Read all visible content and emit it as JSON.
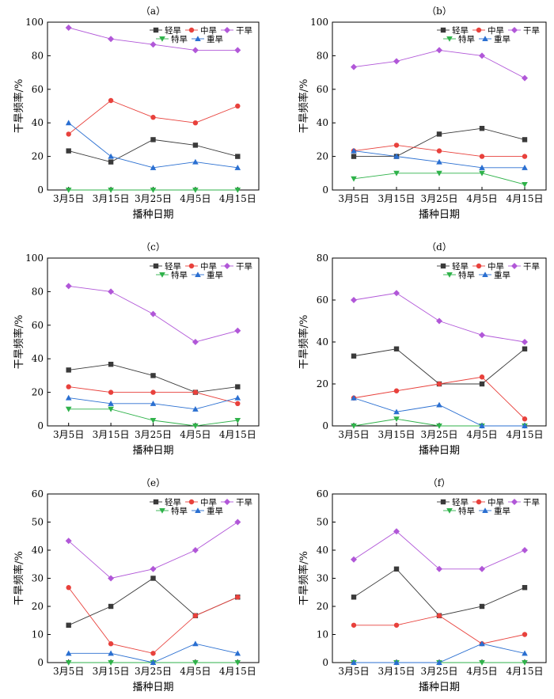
{
  "series_styles": [
    {
      "key": "qinghan",
      "color": "#3a3a3a",
      "marker": "square"
    },
    {
      "key": "zhonghan",
      "color": "#e8413c",
      "marker": "circle"
    },
    {
      "key": "ganhan",
      "color": "#b157d8",
      "marker": "diamond"
    },
    {
      "key": "tehan",
      "color": "#2fb24a",
      "marker": "triangle-down"
    },
    {
      "key": "zhonghan2",
      "color": "#2a6fd1",
      "marker": "triangle-up"
    }
  ],
  "chart_data": [
    {
      "type": "line",
      "title": "（a）",
      "categories": [
        "3月5日",
        "3月15日",
        "3月25日",
        "4月5日",
        "4月15日"
      ],
      "xlabel": "播种日期",
      "ylabel": "干旱频率/%",
      "ylim": [
        0,
        100
      ],
      "yticks": [
        0,
        20,
        40,
        60,
        80,
        100
      ],
      "legend_position": "top-right",
      "series": [
        {
          "name": "轻旱",
          "values": [
            23.3,
            16.7,
            30.0,
            26.7,
            20.0
          ]
        },
        {
          "name": "中旱",
          "values": [
            33.3,
            53.3,
            43.3,
            40.0,
            50.0
          ]
        },
        {
          "name": "干旱",
          "values": [
            96.7,
            90.0,
            86.7,
            83.3,
            83.3
          ]
        },
        {
          "name": "特旱",
          "values": [
            0,
            0,
            0,
            0,
            0
          ]
        },
        {
          "name": "重旱",
          "values": [
            40.0,
            20.0,
            13.3,
            16.7,
            13.3
          ]
        }
      ]
    },
    {
      "type": "line",
      "title": "（b）",
      "categories": [
        "3月5日",
        "3月15日",
        "3月25日",
        "4月5日",
        "4月15日"
      ],
      "xlabel": "播种日期",
      "ylabel": "干旱频率/%",
      "ylim": [
        0,
        100
      ],
      "yticks": [
        0,
        20,
        40,
        60,
        80,
        100
      ],
      "legend_position": "top-right",
      "series": [
        {
          "name": "轻旱",
          "values": [
            20.0,
            20.0,
            33.3,
            36.7,
            30.0
          ]
        },
        {
          "name": "中旱",
          "values": [
            23.3,
            26.7,
            23.3,
            20.0,
            20.0
          ]
        },
        {
          "name": "干旱",
          "values": [
            73.3,
            76.7,
            83.3,
            80.0,
            66.7
          ]
        },
        {
          "name": "特旱",
          "values": [
            6.7,
            10.0,
            10.0,
            10.0,
            3.3
          ]
        },
        {
          "name": "重旱",
          "values": [
            23.3,
            20.0,
            16.7,
            13.3,
            13.3
          ]
        }
      ]
    },
    {
      "type": "line",
      "title": "（c）",
      "categories": [
        "3月5日",
        "3月15日",
        "3月25日",
        "4月5日",
        "4月15日"
      ],
      "xlabel": "播种日期",
      "ylabel": "干旱频率/%",
      "ylim": [
        0,
        100
      ],
      "yticks": [
        0,
        20,
        40,
        60,
        80,
        100
      ],
      "legend_position": "top-right",
      "series": [
        {
          "name": "轻旱",
          "values": [
            33.3,
            36.7,
            30.0,
            20.0,
            23.3
          ]
        },
        {
          "name": "中旱",
          "values": [
            23.3,
            20.0,
            20.0,
            20.0,
            13.3
          ]
        },
        {
          "name": "干旱",
          "values": [
            83.3,
            80.0,
            66.7,
            50.0,
            56.7
          ]
        },
        {
          "name": "特旱",
          "values": [
            10.0,
            10.0,
            3.3,
            0,
            3.3
          ]
        },
        {
          "name": "重旱",
          "values": [
            16.7,
            13.3,
            13.3,
            10.0,
            16.7
          ]
        }
      ]
    },
    {
      "type": "line",
      "title": "（d）",
      "categories": [
        "3月5日",
        "3月15日",
        "3月25日",
        "4月5日",
        "4月15日"
      ],
      "xlabel": "播种日期",
      "ylabel": "干旱频率/%",
      "ylim": [
        0,
        80
      ],
      "yticks": [
        0,
        20,
        40,
        60,
        80
      ],
      "legend_position": "top-right",
      "series": [
        {
          "name": "轻旱",
          "values": [
            33.3,
            36.7,
            20.0,
            20.0,
            36.7
          ]
        },
        {
          "name": "中旱",
          "values": [
            13.3,
            16.7,
            20.0,
            23.3,
            3.3
          ]
        },
        {
          "name": "干旱",
          "values": [
            60.0,
            63.3,
            50.0,
            43.3,
            40.0
          ]
        },
        {
          "name": "特旱",
          "values": [
            0,
            3.3,
            0,
            0,
            0
          ]
        },
        {
          "name": "重旱",
          "values": [
            13.3,
            6.7,
            10.0,
            0,
            0
          ]
        }
      ]
    },
    {
      "type": "line",
      "title": "（e）",
      "categories": [
        "3月5日",
        "3月15日",
        "3月25日",
        "4月5日",
        "4月15日"
      ],
      "xlabel": "播种日期",
      "ylabel": "干旱频率/%",
      "ylim": [
        0,
        60
      ],
      "yticks": [
        0,
        10,
        20,
        30,
        40,
        50,
        60
      ],
      "legend_position": "top-right",
      "series": [
        {
          "name": "轻旱",
          "values": [
            13.3,
            20.0,
            30.0,
            16.7,
            23.3
          ]
        },
        {
          "name": "中旱",
          "values": [
            26.7,
            6.7,
            3.3,
            16.7,
            23.3
          ]
        },
        {
          "name": "干旱",
          "values": [
            43.3,
            30.0,
            33.3,
            40.0,
            50.0
          ]
        },
        {
          "name": "特旱",
          "values": [
            0,
            0,
            0,
            0,
            0
          ]
        },
        {
          "name": "重旱",
          "values": [
            3.3,
            3.3,
            0,
            6.7,
            3.3
          ]
        }
      ]
    },
    {
      "type": "line",
      "title": "（f）",
      "categories": [
        "3月5日",
        "3月15日",
        "3月25日",
        "4月5日",
        "4月15日"
      ],
      "xlabel": "播种日期",
      "ylabel": "干旱频率/%",
      "ylim": [
        0,
        60
      ],
      "yticks": [
        0,
        10,
        20,
        30,
        40,
        50,
        60
      ],
      "legend_position": "top-right",
      "series": [
        {
          "name": "轻旱",
          "values": [
            23.3,
            33.3,
            16.7,
            20.0,
            26.7
          ]
        },
        {
          "name": "中旱",
          "values": [
            13.3,
            13.3,
            16.7,
            6.7,
            10.0
          ]
        },
        {
          "name": "干旱",
          "values": [
            36.7,
            46.7,
            33.3,
            33.3,
            40.0
          ]
        },
        {
          "name": "特旱",
          "values": [
            0,
            0,
            0,
            0,
            0
          ]
        },
        {
          "name": "重旱",
          "values": [
            0,
            0,
            0,
            6.7,
            3.3
          ]
        }
      ]
    }
  ]
}
